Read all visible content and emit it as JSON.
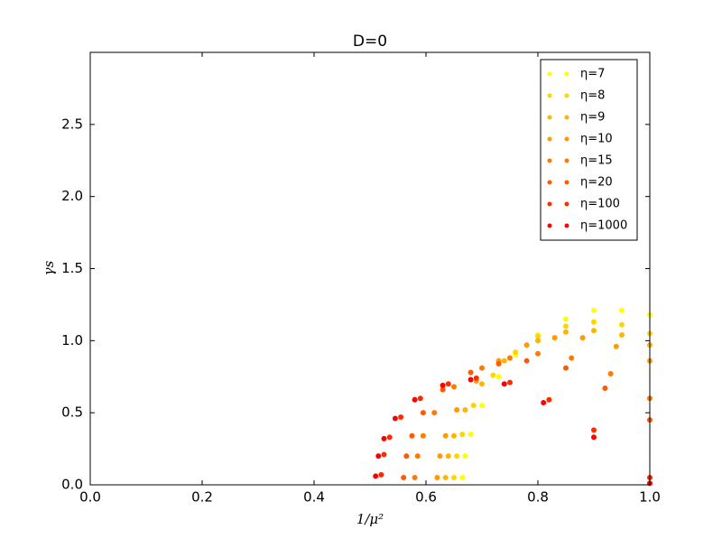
{
  "chart_data": {
    "type": "scatter",
    "title": "D=0",
    "x_label": "1/μ²",
    "y_label": "γs",
    "xlim": [
      0,
      1
    ],
    "ylim": [
      0,
      3
    ],
    "xticks": [
      {
        "value": 0,
        "label": "0.0"
      },
      {
        "value": 0.2,
        "label": "0.2"
      },
      {
        "value": 0.4,
        "label": "0.4"
      },
      {
        "value": 0.6,
        "label": "0.6"
      },
      {
        "value": 0.8,
        "label": "0.8"
      },
      {
        "value": 1,
        "label": "1.0"
      }
    ],
    "yticks": [
      {
        "value": 0,
        "label": "0.0"
      },
      {
        "value": 0.5,
        "label": "0.5"
      },
      {
        "value": 1,
        "label": "1.0"
      },
      {
        "value": 1.5,
        "label": "1.5"
      },
      {
        "value": 2,
        "label": "2.0"
      },
      {
        "value": 2.5,
        "label": "2.5"
      }
    ],
    "legend": "upper right",
    "series": [
      {
        "name": "η=7",
        "color": "#ffff00",
        "x": [
          0.665,
          0.67,
          0.68,
          0.7,
          0.73,
          0.76,
          0.8,
          0.85,
          0.9,
          0.95,
          1.0
        ],
        "values": [
          0.05,
          0.2,
          0.35,
          0.55,
          0.75,
          0.9,
          1.04,
          1.15,
          1.21,
          1.21,
          1.18
        ]
      },
      {
        "name": "η=8",
        "color": "#ffd500",
        "x": [
          0.65,
          0.655,
          0.665,
          0.685,
          0.72,
          0.76,
          0.8,
          0.85,
          0.9,
          0.95,
          1.0
        ],
        "values": [
          0.05,
          0.2,
          0.35,
          0.55,
          0.76,
          0.92,
          1.03,
          1.1,
          1.13,
          1.11,
          1.05
        ]
      },
      {
        "name": "η=9",
        "color": "#ffb500",
        "x": [
          0.635,
          0.64,
          0.65,
          0.67,
          0.7,
          0.74,
          0.8,
          0.85,
          0.9,
          0.95,
          1.0
        ],
        "values": [
          0.05,
          0.2,
          0.34,
          0.52,
          0.7,
          0.86,
          1.0,
          1.06,
          1.07,
          1.04,
          0.97
        ]
      },
      {
        "name": "η=10",
        "color": "#ff9a00",
        "x": [
          0.62,
          0.625,
          0.635,
          0.655,
          0.69,
          0.73,
          0.78,
          0.83,
          0.88,
          0.94,
          1.0
        ],
        "values": [
          0.05,
          0.2,
          0.34,
          0.52,
          0.72,
          0.86,
          0.97,
          1.02,
          1.02,
          0.96,
          0.86
        ]
      },
      {
        "name": "η=15",
        "color": "#ff7a00",
        "x": [
          0.58,
          0.585,
          0.595,
          0.615,
          0.65,
          0.7,
          0.75,
          0.8,
          0.86,
          0.93,
          1.0
        ],
        "values": [
          0.05,
          0.2,
          0.34,
          0.5,
          0.68,
          0.81,
          0.88,
          0.91,
          0.88,
          0.77,
          0.6
        ]
      },
      {
        "name": "η=20",
        "color": "#ff5a00",
        "x": [
          0.56,
          0.565,
          0.575,
          0.595,
          0.63,
          0.68,
          0.73,
          0.78,
          0.85,
          0.92,
          1.0
        ],
        "values": [
          0.05,
          0.2,
          0.34,
          0.5,
          0.66,
          0.78,
          0.84,
          0.86,
          0.81,
          0.67,
          0.45
        ]
      },
      {
        "name": "η=100",
        "color": "#ff2a00",
        "x": [
          0.52,
          0.525,
          0.535,
          0.555,
          0.59,
          0.64,
          0.69,
          0.75,
          0.82,
          0.9,
          1.0
        ],
        "values": [
          0.07,
          0.21,
          0.33,
          0.47,
          0.6,
          0.7,
          0.74,
          0.71,
          0.59,
          0.38,
          0.05
        ]
      },
      {
        "name": "η=1000",
        "color": "#ff0000",
        "x": [
          0.51,
          0.515,
          0.525,
          0.545,
          0.58,
          0.63,
          0.68,
          0.74,
          0.81,
          0.9,
          1.0
        ],
        "values": [
          0.06,
          0.2,
          0.32,
          0.46,
          0.59,
          0.69,
          0.73,
          0.7,
          0.57,
          0.33,
          0.01
        ]
      }
    ]
  }
}
